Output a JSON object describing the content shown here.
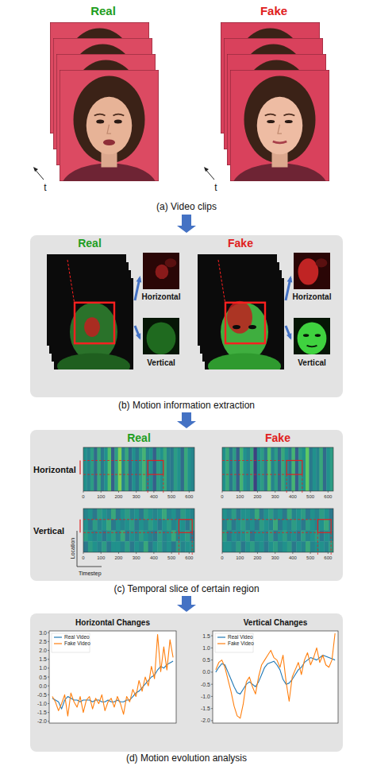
{
  "figure": {
    "panel_a": {
      "caption": "(a)  Video clips",
      "labels": [
        {
          "text": "Real",
          "color": "#1e9e1e"
        },
        {
          "text": "Fake",
          "color": "#e02020"
        }
      ],
      "time_label": "t"
    },
    "panel_b": {
      "caption": "(b)  Motion information extraction",
      "labels": [
        {
          "text": "Real",
          "color": "#1e9e1e"
        },
        {
          "text": "Fake",
          "color": "#e02020"
        }
      ],
      "crops": [
        "Horizontal",
        "Vertical"
      ]
    },
    "panel_c": {
      "caption": "(c)  Temporal slice of certain region",
      "labels": [
        {
          "text": "Real",
          "color": "#1e9e1e"
        },
        {
          "text": "Fake",
          "color": "#e02020"
        }
      ],
      "rows": [
        "Horizontal",
        "Vertical"
      ],
      "x_label": "Timestep",
      "y_label": "Location",
      "xlim": [
        0,
        630
      ],
      "xticks": [
        0,
        100,
        200,
        300,
        400,
        500,
        600
      ],
      "value_range": [
        0,
        1
      ],
      "heatmaps": [
        {
          "cells": [
            [
              0.5,
              0.45,
              0.55,
              0.35,
              0.6,
              0.4,
              0.5,
              0.7,
              0.3,
              0.55,
              0.8,
              0.45,
              0.6,
              0.35,
              0.5,
              0.4,
              0.55,
              0.65,
              0.45,
              0.5,
              0.3,
              0.55,
              0.5,
              0.6,
              0.45,
              0.4,
              0.55,
              0.5,
              0.35,
              0.6,
              0.5,
              0.45
            ]
          ]
        },
        {
          "cells": [
            [
              0.5,
              0.6,
              0.4,
              0.55,
              0.3,
              0.65,
              0.5,
              0.45,
              0.6,
              0.2,
              0.5,
              0.55,
              0.4,
              0.7,
              0.45,
              0.55,
              0.35,
              0.6,
              0.5,
              0.4,
              0.65,
              0.3,
              0.55,
              0.5,
              0.75,
              0.4,
              0.5,
              0.45,
              0.6,
              0.35,
              0.5,
              0.55
            ]
          ]
        },
        {
          "cells": [
            [
              0.45,
              0.5,
              0.4,
              0.55,
              0.5,
              0.45,
              0.6,
              0.4,
              0.5,
              0.55,
              0.45,
              0.5,
              0.4,
              0.55,
              0.5,
              0.45,
              0.5,
              0.6,
              0.45,
              0.5,
              0.4,
              0.55,
              0.5,
              0.45
            ],
            [
              0.5,
              0.4,
              0.55,
              0.45,
              0.5,
              0.6,
              0.4,
              0.5,
              0.45,
              0.5,
              0.55,
              0.4,
              0.5,
              0.45,
              0.55,
              0.5,
              0.4,
              0.5,
              0.55,
              0.45,
              0.5,
              0.5,
              0.4,
              0.55
            ],
            [
              0.55,
              0.5,
              0.45,
              0.5,
              0.4,
              0.5,
              0.55,
              0.45,
              0.6,
              0.4,
              0.5,
              0.45,
              0.55,
              0.5,
              0.45,
              0.4,
              0.55,
              0.45,
              0.5,
              0.6,
              0.45,
              0.5,
              0.55,
              0.4
            ],
            [
              0.4,
              0.55,
              0.5,
              0.45,
              0.55,
              0.4,
              0.5,
              0.5,
              0.45,
              0.55,
              0.4,
              0.5,
              0.45,
              0.6,
              0.4,
              0.5,
              0.55,
              0.45,
              0.5,
              0.4,
              0.55,
              0.45,
              0.5,
              0.5
            ]
          ]
        },
        {
          "cells": [
            [
              0.5,
              0.45,
              0.55,
              0.4,
              0.5,
              0.5,
              0.45,
              0.6,
              0.4,
              0.5,
              0.55,
              0.45,
              0.5,
              0.4,
              0.6,
              0.45,
              0.5,
              0.55,
              0.4,
              0.5,
              0.45,
              0.55,
              0.5,
              0.4
            ],
            [
              0.45,
              0.55,
              0.4,
              0.5,
              0.55,
              0.45,
              0.5,
              0.4,
              0.55,
              0.5,
              0.45,
              0.6,
              0.4,
              0.5,
              0.45,
              0.55,
              0.5,
              0.4,
              0.55,
              0.5,
              0.45,
              0.5,
              0.6,
              0.45
            ],
            [
              0.55,
              0.4,
              0.5,
              0.45,
              0.5,
              0.55,
              0.4,
              0.5,
              0.5,
              0.45,
              0.55,
              0.4,
              0.5,
              0.55,
              0.45,
              0.5,
              0.4,
              0.55,
              0.45,
              0.5,
              0.55,
              0.4,
              0.5,
              0.45
            ],
            [
              0.5,
              0.5,
              0.45,
              0.55,
              0.4,
              0.5,
              0.55,
              0.45,
              0.5,
              0.4,
              0.5,
              0.55,
              0.45,
              0.5,
              0.55,
              0.4,
              0.5,
              0.45,
              0.6,
              0.45,
              0.5,
              0.5,
              0.45,
              0.55
            ]
          ]
        }
      ]
    },
    "panel_d": {
      "caption": "(d)  Motion evolution analysis"
    }
  },
  "chart_data": [
    {
      "type": "line",
      "title": "Horizontal Changes",
      "tick_labels": "y",
      "grid": false,
      "legend": "upper left",
      "x": [
        0,
        1,
        2,
        3,
        4,
        5,
        6,
        7,
        8,
        9,
        10,
        11,
        12,
        13,
        14,
        15,
        16,
        17,
        18,
        19,
        20,
        21,
        22,
        23,
        24,
        25,
        26,
        27,
        28,
        29,
        30,
        31,
        32,
        33,
        34,
        35,
        36,
        37,
        38,
        39
      ],
      "xlim": [
        -1,
        40
      ],
      "ylim": [
        -2.1,
        3.1
      ],
      "yticks": [
        {
          "value": 3,
          "label": "3.0"
        },
        2.5,
        {
          "value": 2,
          "label": "2.0"
        },
        1.5,
        {
          "value": 1,
          "label": "1.0"
        },
        0.5,
        {
          "value": 0,
          "label": "0.0"
        },
        -0.5,
        {
          "value": -1,
          "label": "-1.0"
        },
        -1.5,
        {
          "value": -2,
          "label": "-2.0"
        }
      ],
      "series": [
        {
          "name": "Real Video",
          "color": "#1f77b4",
          "values": [
            -0.7,
            -0.8,
            -0.9,
            -1.3,
            -0.8,
            -0.6,
            -0.7,
            -0.8,
            -0.8,
            -0.9,
            -0.8,
            -0.8,
            -0.8,
            -0.9,
            -0.8,
            -0.8,
            -0.9,
            -0.9,
            -0.8,
            -0.9,
            -0.9,
            -0.8,
            -0.9,
            -0.9,
            -0.8,
            -0.8,
            -0.6,
            -0.4,
            -0.3,
            -0.1,
            0.1,
            0.3,
            0.5,
            0.6,
            0.9,
            1.1,
            1.0,
            1.2,
            1.3,
            1.4
          ]
        },
        {
          "name": "Fake Video",
          "color": "#ff7f0e",
          "values": [
            -0.6,
            -0.9,
            -1.4,
            -1.0,
            -0.5,
            -1.7,
            -0.4,
            -0.9,
            -1.2,
            -0.6,
            -1.5,
            -0.8,
            -0.6,
            -1.3,
            -0.7,
            -1.0,
            -0.5,
            -1.4,
            -0.9,
            -0.7,
            -1.2,
            -0.6,
            -1.0,
            -1.6,
            -0.6,
            -0.9,
            -0.2,
            -0.6,
            0.3,
            -0.3,
            0.5,
            0.0,
            1.1,
            0.4,
            2.9,
            0.8,
            2.2,
            0.9,
            2.6,
            1.6
          ]
        }
      ]
    },
    {
      "type": "line",
      "title": "Vertical Changes",
      "tick_labels": "y",
      "grid": false,
      "legend": "upper left",
      "x": [
        0,
        1,
        2,
        3,
        4,
        5,
        6,
        7,
        8,
        9,
        10,
        11,
        12,
        13,
        14,
        15,
        16,
        17,
        18,
        19,
        20,
        21,
        22,
        23,
        24,
        25,
        26,
        27,
        28,
        29,
        30,
        31,
        32,
        33,
        34,
        35,
        36,
        37,
        38,
        39
      ],
      "xlim": [
        -1,
        40
      ],
      "ylim": [
        -2.1,
        1.7
      ],
      "yticks": [
        1.5,
        {
          "value": 1,
          "label": "1.0"
        },
        0.5,
        {
          "value": 0,
          "label": "0.0"
        },
        -0.5,
        {
          "value": -1,
          "label": "-1.0"
        },
        -1.5,
        {
          "value": -2,
          "label": "-2.0"
        }
      ],
      "series": [
        {
          "name": "Real Video",
          "color": "#1f77b4",
          "values": [
            0.0,
            0.2,
            0.35,
            0.3,
            0.0,
            -0.3,
            -0.6,
            -0.85,
            -0.9,
            -0.7,
            -0.5,
            -0.4,
            -0.5,
            -0.6,
            -0.4,
            -0.1,
            0.2,
            0.35,
            0.4,
            0.45,
            0.3,
            0.1,
            -0.3,
            -0.5,
            -0.45,
            -0.3,
            -0.1,
            0.1,
            0.2,
            0.4,
            0.5,
            0.6,
            0.55,
            0.5,
            0.6,
            0.7,
            0.65,
            0.6,
            0.55,
            0.5
          ]
        },
        {
          "name": "Fake Video",
          "color": "#ff7f0e",
          "values": [
            0.1,
            0.4,
            0.5,
            0.2,
            -0.3,
            -0.8,
            -1.4,
            -1.8,
            -1.9,
            -1.3,
            -0.4,
            -0.2,
            -0.6,
            -0.9,
            -0.2,
            0.3,
            0.5,
            0.7,
            0.9,
            0.6,
            0.5,
            0.2,
            0.7,
            -0.4,
            -1.2,
            -0.2,
            0.1,
            0.4,
            -0.1,
            0.5,
            0.8,
            0.3,
            0.6,
            1.0,
            0.4,
            0.7,
            0.3,
            0.2,
            0.5,
            1.6
          ]
        }
      ]
    }
  ]
}
